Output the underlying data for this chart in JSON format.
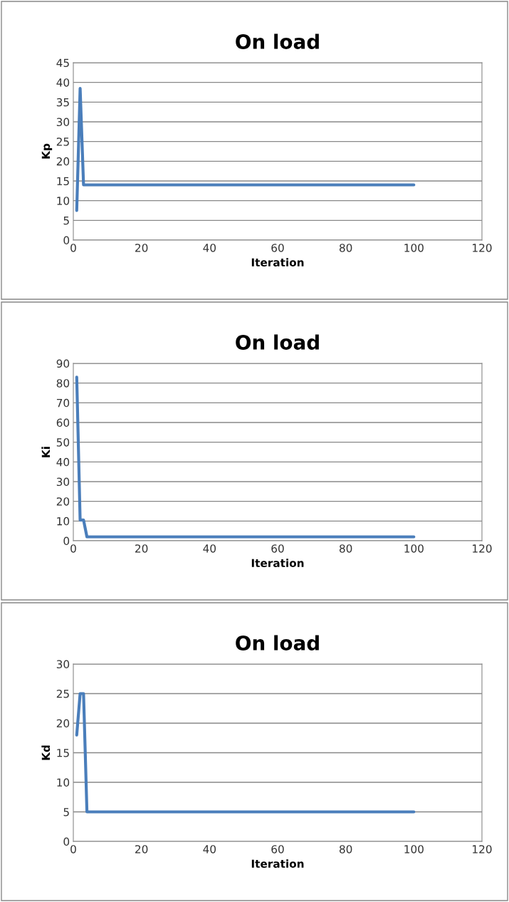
{
  "chart_data": [
    {
      "type": "line",
      "title": "On load",
      "xlabel": "Iteration",
      "ylabel": "Kp",
      "xlim": [
        0,
        120
      ],
      "xticks": [
        0,
        20,
        40,
        60,
        80,
        100,
        120
      ],
      "ylim": [
        0,
        45
      ],
      "yticks": [
        0,
        5,
        10,
        15,
        20,
        25,
        30,
        35,
        40,
        45
      ],
      "grid": "y",
      "legend": false,
      "series": [
        {
          "color": "#4a7ebb",
          "x": [
            1,
            2,
            3,
            100
          ],
          "values": [
            7.5,
            38.5,
            14,
            14
          ]
        }
      ]
    },
    {
      "type": "line",
      "title": "On load",
      "xlabel": "Iteration",
      "ylabel": "Ki",
      "xlim": [
        0,
        120
      ],
      "xticks": [
        0,
        20,
        40,
        60,
        80,
        100,
        120
      ],
      "ylim": [
        0,
        90
      ],
      "yticks": [
        0,
        10,
        20,
        30,
        40,
        50,
        60,
        70,
        80,
        90
      ],
      "grid": "y",
      "legend": false,
      "series": [
        {
          "color": "#4a7ebb",
          "x": [
            1,
            2,
            3,
            4,
            100
          ],
          "values": [
            83,
            10.5,
            10.5,
            2,
            2
          ]
        }
      ]
    },
    {
      "type": "line",
      "title": "On load",
      "xlabel": "Iteration",
      "ylabel": "Kd",
      "xlim": [
        0,
        120
      ],
      "xticks": [
        0,
        20,
        40,
        60,
        80,
        100,
        120
      ],
      "ylim": [
        0,
        30
      ],
      "yticks": [
        0,
        5,
        10,
        15,
        20,
        25,
        30
      ],
      "grid": "y",
      "legend": false,
      "series": [
        {
          "color": "#4a7ebb",
          "x": [
            1,
            2,
            3,
            4,
            100
          ],
          "values": [
            18,
            25,
            25,
            5,
            5
          ]
        }
      ]
    }
  ]
}
